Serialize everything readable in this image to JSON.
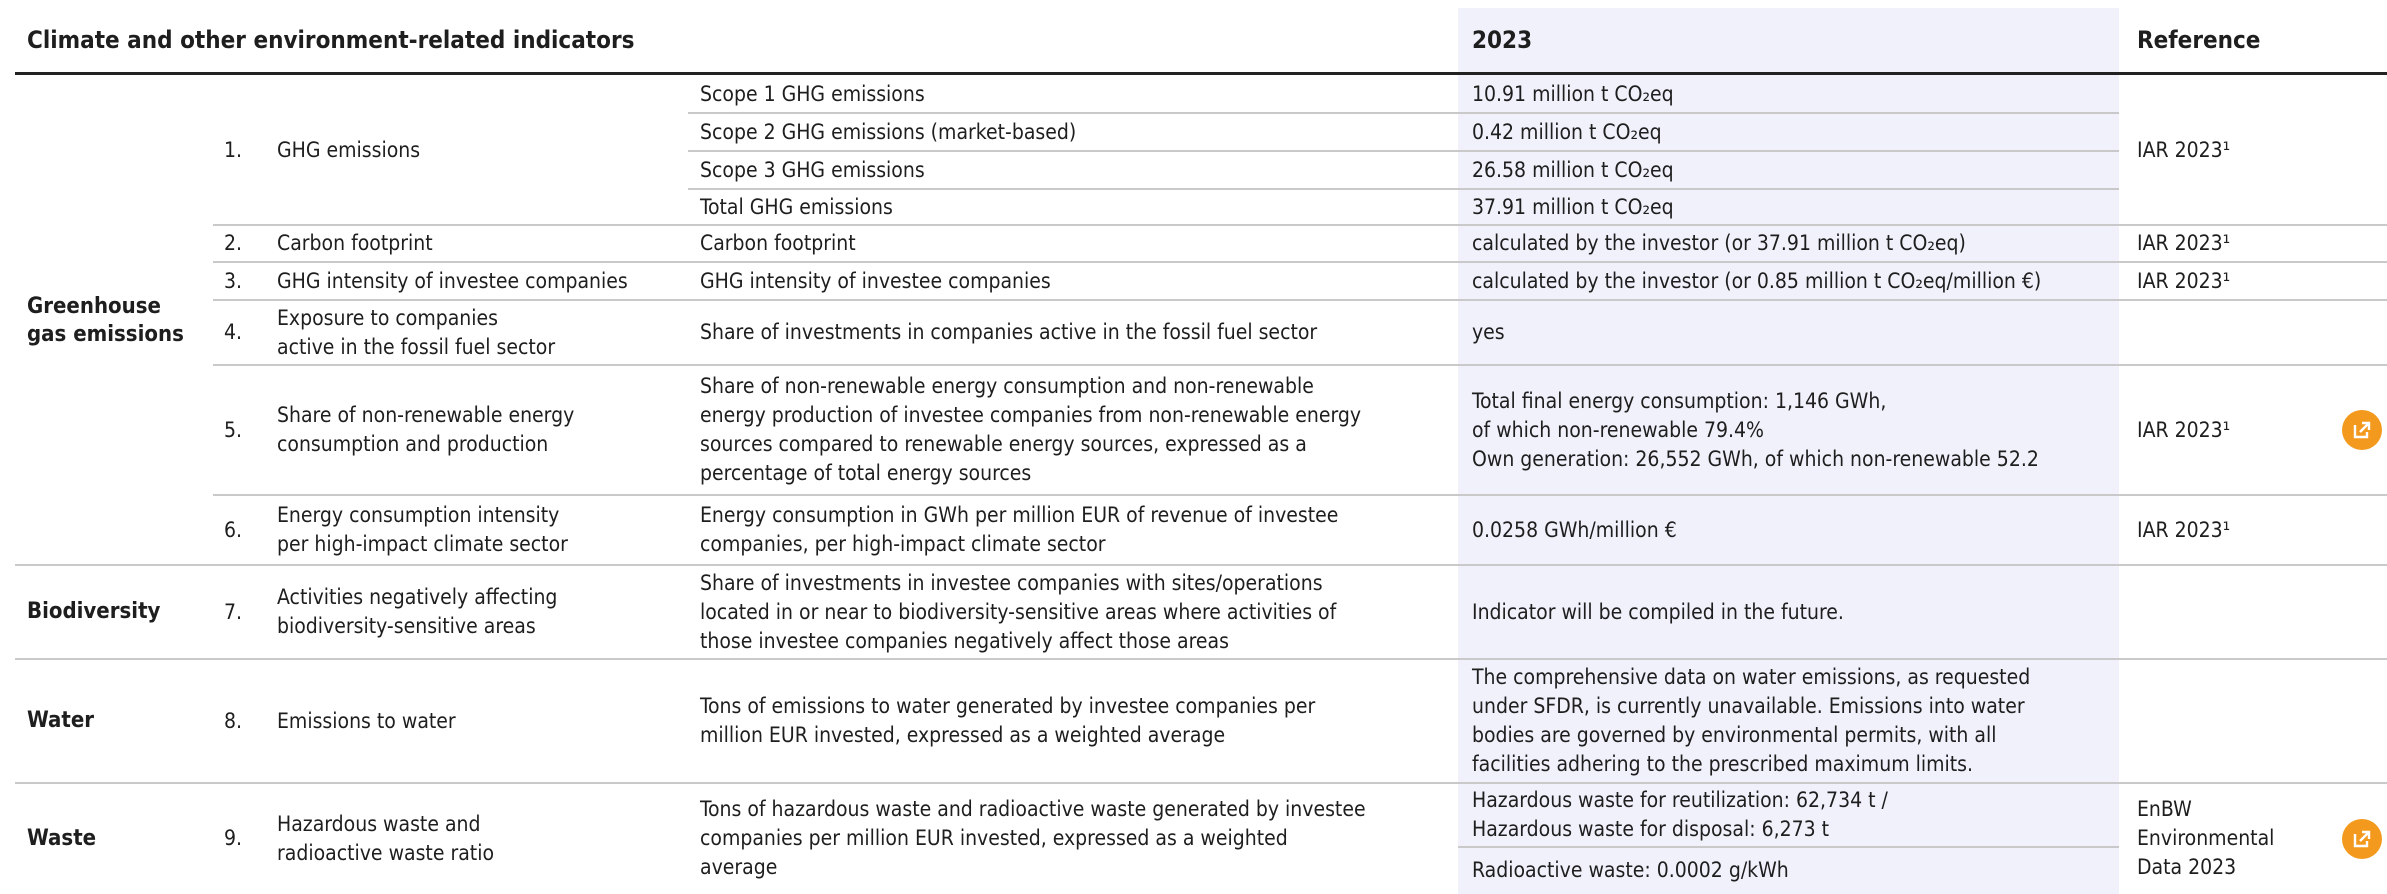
{
  "header": {
    "title": "Climate and other environment-related indicators",
    "year": "2023",
    "reference": "Reference"
  },
  "groups": [
    "Greenhouse\ngas emissions",
    "Biodiversity",
    "Water",
    "Waste"
  ],
  "rows": [
    {
      "number": "1.",
      "indicator": "GHG emissions",
      "metrics": [
        "Scope 1 GHG emissions",
        "Scope 2 GHG emissions (market-based)",
        "Scope 3 GHG emissions",
        "Total GHG emissions"
      ],
      "values": [
        "10.91 million t CO₂eq",
        "0.42 million t CO₂eq",
        "26.58 million t CO₂eq",
        "37.91 million t CO₂eq"
      ],
      "reference": "IAR 2023¹"
    },
    {
      "number": "2.",
      "indicator": "Carbon footprint",
      "metrics": [
        "Carbon footprint"
      ],
      "values": [
        "calculated by the investor (or 37.91 million t CO₂eq)"
      ],
      "reference": "IAR 2023¹"
    },
    {
      "number": "3.",
      "indicator": "GHG intensity of investee companies",
      "metrics": [
        "GHG intensity of investee companies"
      ],
      "values": [
        "calculated by the investor (or 0.85 million t CO₂eq/million €)"
      ],
      "reference": "IAR 2023¹"
    },
    {
      "number": "4.",
      "indicator": "Exposure to companies\nactive in the fossil fuel sector",
      "metrics": [
        "Share of investments in companies active in the fossil fuel sector"
      ],
      "values": [
        "yes"
      ]
    },
    {
      "number": "5.",
      "indicator": "Share of non-renewable energy\nconsumption and production",
      "metrics": [
        "Share of non-renewable energy consumption and non-renewable\nenergy production of investee companies from non-renewable energy\nsources compared to renewable energy sources, expressed as a\npercentage of total energy sources"
      ],
      "values": [
        "Total final energy consumption: 1,146 GWh,\nof which non-renewable 79.4%\nOwn generation: 26,552 GWh, of which non-renewable 52.2"
      ],
      "reference": "IAR 2023¹"
    },
    {
      "number": "6.",
      "indicator": "Energy consumption intensity\nper high-impact climate sector",
      "metrics": [
        "Energy consumption in GWh per million EUR of revenue of investee\ncompanies, per high-impact climate sector"
      ],
      "values": [
        "0.0258 GWh/million €"
      ],
      "reference": "IAR 2023¹"
    },
    {
      "number": "7.",
      "indicator": "Activities negatively affecting\nbiodiversity-sensitive areas",
      "metrics": [
        "Share of investments in investee companies with sites/operations\nlocated in or near to biodiversity-sensitive areas where activities of\nthose investee companies negatively affect those areas"
      ],
      "values": [
        "Indicator will be compiled in the future."
      ]
    },
    {
      "number": "8.",
      "indicator": "Emissions to water",
      "metrics": [
        "Tons of emissions to water generated by investee companies per\nmillion EUR invested, expressed as a weighted average"
      ],
      "values": [
        "The comprehensive data on water emissions, as requested\nunder SFDR, is currently unavailable. Emissions into water\nbodies are governed by environmental permits, with all\nfacilities adhering to the prescribed maximum limits."
      ]
    },
    {
      "number": "9.",
      "indicator": "Hazardous waste and\nradioactive waste ratio",
      "metrics": [
        "Tons of hazardous waste and radioactive waste generated by investee\ncompanies per million EUR invested, expressed as a weighted\naverage"
      ],
      "values": [
        "Hazardous waste for reutilization: 62,734 t /\nHazardous waste for disposal: 6,273 t",
        "Radioactive waste: 0.0002 g/kWh"
      ],
      "reference": "EnBW\nEnvironmental\nData 2023"
    }
  ]
}
